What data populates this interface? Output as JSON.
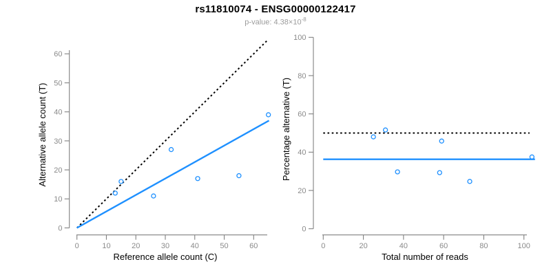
{
  "header": {
    "title": "rs11810074 - ENSG00000122417",
    "pvalue_label": "p-value: 4.38×10",
    "pvalue_exponent": "-8"
  },
  "colors": {
    "accent_blue": "#1E90FF",
    "dotted_black": "#000000",
    "axis_gray": "#808080",
    "tick_label_gray": "#8a8a8a",
    "subtitle_gray": "#9b9b9b"
  },
  "chart_data": [
    {
      "type": "scatter",
      "position": "left",
      "xlabel": "Reference allele count (C)",
      "ylabel": "Alternative allele count (T)",
      "xlim": [
        0,
        66
      ],
      "ylim": [
        0,
        66
      ],
      "xticks": [
        0,
        10,
        20,
        30,
        40,
        50,
        60
      ],
      "yticks": [
        0,
        10,
        20,
        30,
        40,
        50,
        60
      ],
      "grid": false,
      "points": {
        "name": "allele-count-points",
        "marker": "open-circle",
        "color": "#1E90FF",
        "xy": [
          [
            13,
            12
          ],
          [
            15,
            16
          ],
          [
            26,
            11
          ],
          [
            32,
            27
          ],
          [
            41,
            17
          ],
          [
            55,
            18
          ],
          [
            65,
            39
          ]
        ]
      },
      "lines": [
        {
          "name": "identity-line",
          "style": "dotted",
          "color": "#000000",
          "x1": 0,
          "y1": 0,
          "x2": 64.7,
          "y2": 64.7
        },
        {
          "name": "fit-line",
          "style": "solid",
          "color": "#1E90FF",
          "x1": 0,
          "y1": 0,
          "x2": 65.2,
          "y2": 37.0
        }
      ]
    },
    {
      "type": "scatter",
      "position": "right",
      "xlabel": "Total number of reads",
      "ylabel": "Percentage alternative (T)",
      "xlim": [
        0,
        106
      ],
      "ylim": [
        0,
        100
      ],
      "xticks": [
        0,
        20,
        40,
        60,
        80,
        100
      ],
      "yticks": [
        0,
        20,
        40,
        60,
        80,
        100
      ],
      "grid": false,
      "points": {
        "name": "percentage-points",
        "marker": "open-circle",
        "color": "#1E90FF",
        "xy": [
          [
            25,
            48.0
          ],
          [
            31,
            51.6
          ],
          [
            37,
            29.7
          ],
          [
            58,
            29.3
          ],
          [
            59,
            45.8
          ],
          [
            73,
            24.7
          ],
          [
            104,
            37.5
          ]
        ]
      },
      "lines": [
        {
          "name": "expected-50pct-line",
          "style": "dotted",
          "color": "#000000",
          "x1": 0,
          "y1": 50,
          "x2": 102.8,
          "y2": 50
        },
        {
          "name": "mean-percentage-line",
          "style": "solid",
          "color": "#1E90FF",
          "x1": 0,
          "y1": 36.3,
          "x2": 105.5,
          "y2": 36.3
        }
      ]
    }
  ]
}
